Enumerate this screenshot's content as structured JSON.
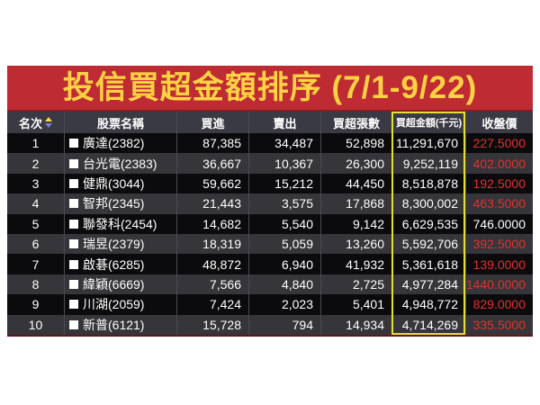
{
  "title": "投信買超金額排序 (7/1-9/22)",
  "colors": {
    "banner_red": "#be2b33",
    "title_yellow": "#ffd244",
    "highlight_yellow": "#e3df3a",
    "price_red": "#e2312d",
    "header_bg": "#3a3a44",
    "row_odd_bg": "#0b0b0d",
    "row_even_bg": "#35353a"
  },
  "table": {
    "headers": {
      "rank": "名次",
      "name": "股票名稱",
      "buy": "買進",
      "sell": "賣出",
      "net_volume": "買超張數",
      "net_amount": "買超金額(千元)",
      "close": "收盤價"
    },
    "sort_icon": "sort-asc-desc-icon",
    "rows": [
      {
        "rank": "1",
        "name": "廣達(2382)",
        "buy": "87,385",
        "sell": "34,487",
        "net_volume": "52,898",
        "net_amount": "11,291,670",
        "close": "227.5000",
        "close_color": "red"
      },
      {
        "rank": "2",
        "name": "台光電(2383)",
        "buy": "36,667",
        "sell": "10,367",
        "net_volume": "26,300",
        "net_amount": "9,252,119",
        "close": "402.0000",
        "close_color": "red"
      },
      {
        "rank": "3",
        "name": "健鼎(3044)",
        "buy": "59,662",
        "sell": "15,212",
        "net_volume": "44,450",
        "net_amount": "8,518,878",
        "close": "192.5000",
        "close_color": "red"
      },
      {
        "rank": "4",
        "name": "智邦(2345)",
        "buy": "21,443",
        "sell": "3,575",
        "net_volume": "17,868",
        "net_amount": "8,300,002",
        "close": "463.5000",
        "close_color": "red"
      },
      {
        "rank": "5",
        "name": "聯發科(2454)",
        "buy": "14,682",
        "sell": "5,540",
        "net_volume": "9,142",
        "net_amount": "6,629,535",
        "close": "746.0000",
        "close_color": "white"
      },
      {
        "rank": "6",
        "name": "瑞昱(2379)",
        "buy": "18,319",
        "sell": "5,059",
        "net_volume": "13,260",
        "net_amount": "5,592,706",
        "close": "392.5000",
        "close_color": "red"
      },
      {
        "rank": "7",
        "name": "啟碁(6285)",
        "buy": "48,872",
        "sell": "6,940",
        "net_volume": "41,932",
        "net_amount": "5,361,618",
        "close": "139.0000",
        "close_color": "red"
      },
      {
        "rank": "8",
        "name": "緯穎(6669)",
        "buy": "7,566",
        "sell": "4,840",
        "net_volume": "2,725",
        "net_amount": "4,977,284",
        "close": "1440.0000",
        "close_color": "red"
      },
      {
        "rank": "9",
        "name": "川湖(2059)",
        "buy": "7,424",
        "sell": "2,023",
        "net_volume": "5,401",
        "net_amount": "4,948,772",
        "close": "829.0000",
        "close_color": "red"
      },
      {
        "rank": "10",
        "name": "新普(6121)",
        "buy": "15,728",
        "sell": "794",
        "net_volume": "14,934",
        "net_amount": "4,714,269",
        "close": "335.5000",
        "close_color": "red"
      }
    ]
  }
}
